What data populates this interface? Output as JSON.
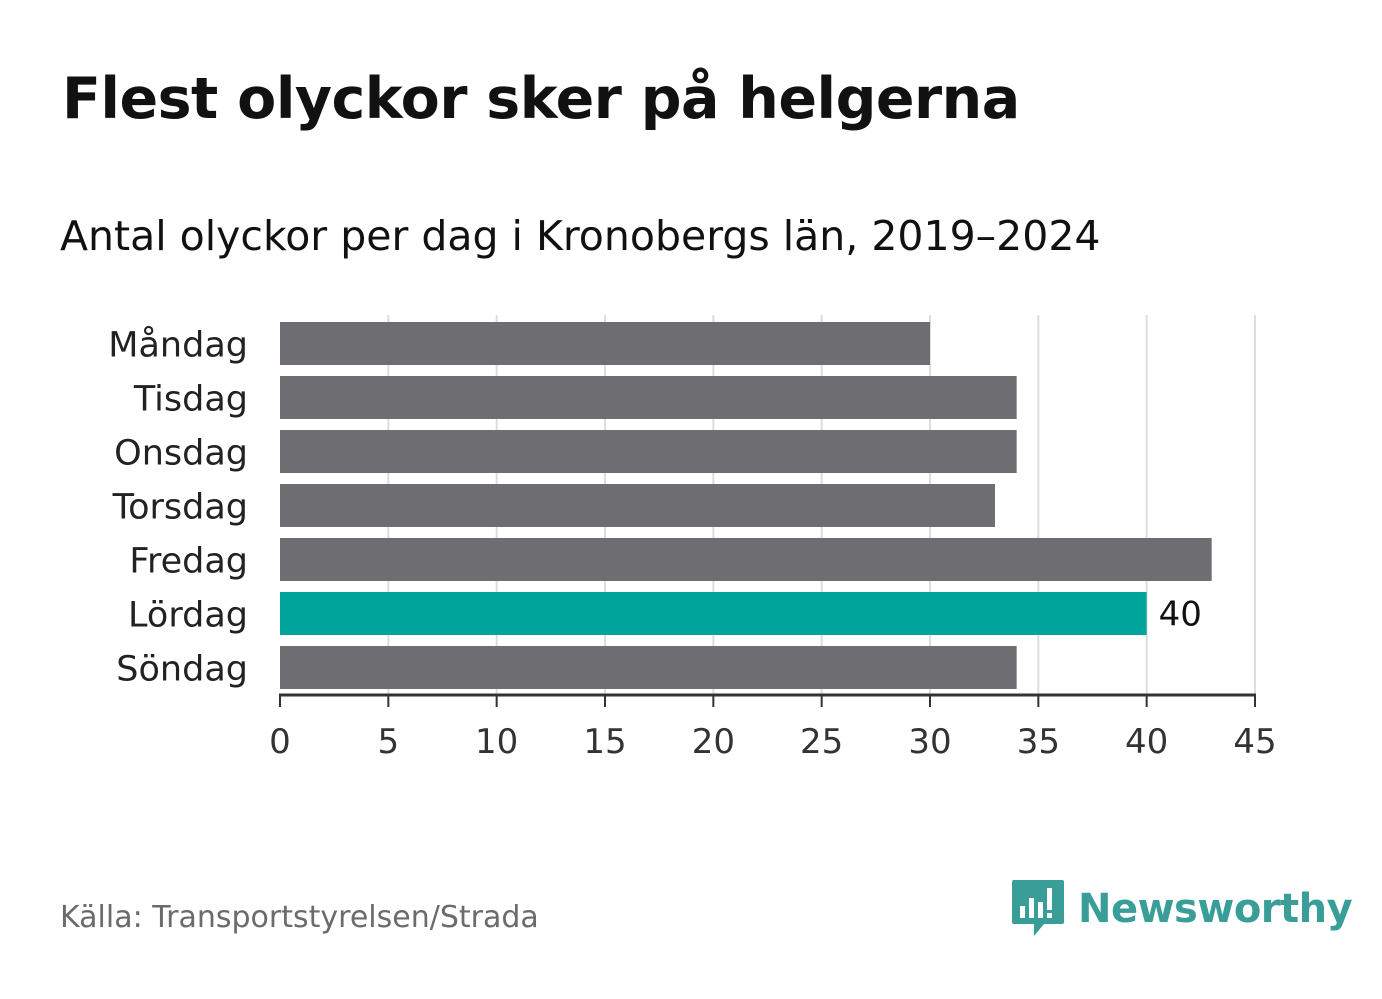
{
  "header": {
    "title": "Flest olyckor sker på helgerna",
    "subtitle": "Antal olyckor per dag i Kronobergs län, 2019–2024"
  },
  "footer": {
    "source": "Källa: Transportstyrelsen/Strada",
    "brand": "Newsworthy",
    "brand_icon": "newsworthy-logo-icon"
  },
  "colors": {
    "bar": "#6e6d72",
    "highlight": "#00a49a",
    "grid": "#dddddd",
    "axis": "#333333",
    "brand": "#3a9e98"
  },
  "chart_data": {
    "type": "bar",
    "orientation": "horizontal",
    "categories": [
      "Måndag",
      "Tisdag",
      "Onsdag",
      "Torsdag",
      "Fredag",
      "Lördag",
      "Söndag"
    ],
    "values": [
      30,
      34,
      34,
      33,
      43,
      40,
      34
    ],
    "highlight_category": "Lördag",
    "data_labels": [
      {
        "category": "Lördag",
        "value": 40,
        "text": "40"
      }
    ],
    "title": "Flest olyckor sker på helgerna",
    "subtitle": "Antal olyckor per dag i Kronobergs län, 2019–2024",
    "xlabel": "",
    "ylabel": "",
    "xlim": [
      0,
      45
    ],
    "xticks": [
      "0",
      "5",
      "10",
      "15",
      "20",
      "25",
      "30",
      "35",
      "40",
      "45"
    ],
    "xtick_values": [
      0,
      5,
      10,
      15,
      20,
      25,
      30,
      35,
      40,
      45
    ],
    "grid": true
  }
}
